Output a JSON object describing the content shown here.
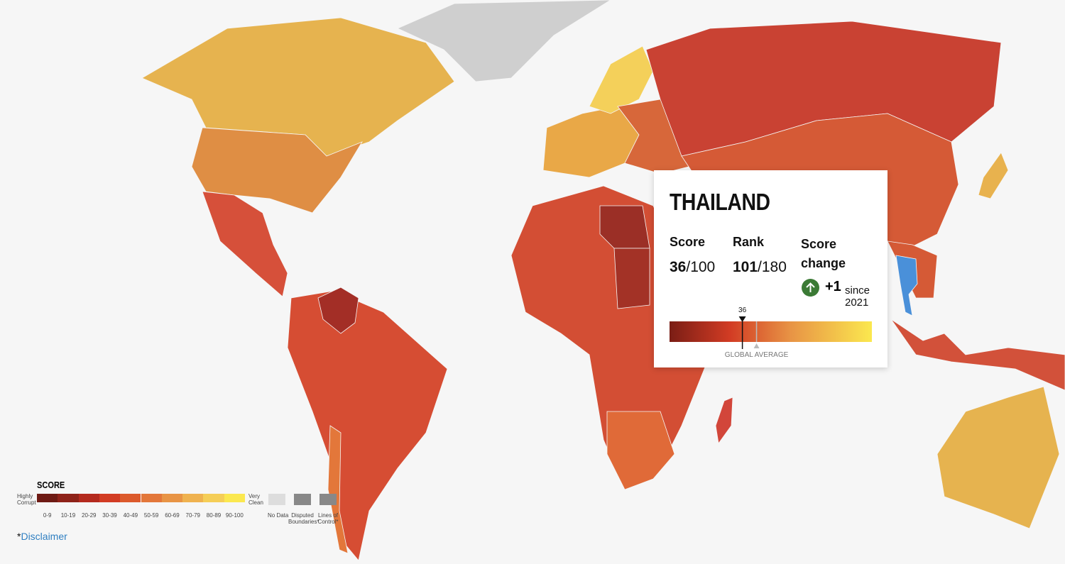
{
  "tooltip": {
    "country": "THAILAND",
    "score_label": "Score",
    "score": 36,
    "score_total": "/100",
    "rank_label": "Rank",
    "rank": 101,
    "rank_total": "/180",
    "change_label": "Score change",
    "change": "+1",
    "since": "since 2021",
    "scale_lim": [
      0,
      100
    ],
    "global_average": 43,
    "global_average_label": "GLOBAL AVERAGE"
  },
  "legend": {
    "title": "SCORE",
    "low_label": "Highly Corrupt",
    "high_label": "Very Clean",
    "bins": [
      {
        "label": "0-9",
        "color": "#6e1a14"
      },
      {
        "label": "10-19",
        "color": "#8e2219"
      },
      {
        "label": "20-29",
        "color": "#b42a1e"
      },
      {
        "label": "30-39",
        "color": "#d23c24"
      },
      {
        "label": "40-49",
        "color": "#dc5a2c"
      },
      {
        "label": "50-59",
        "color": "#e3773a"
      },
      {
        "label": "60-69",
        "color": "#e89445"
      },
      {
        "label": "70-79",
        "color": "#efb24f"
      },
      {
        "label": "80-89",
        "color": "#f5ce57"
      },
      {
        "label": "90-100",
        "color": "#fbe84f"
      }
    ],
    "no_data": "No Data",
    "disputed": "Disputed Boundaries*",
    "lines_of_control": "Lines of Control*"
  },
  "footer": {
    "asterisk": "*",
    "disclaimer": "Disclaimer"
  }
}
